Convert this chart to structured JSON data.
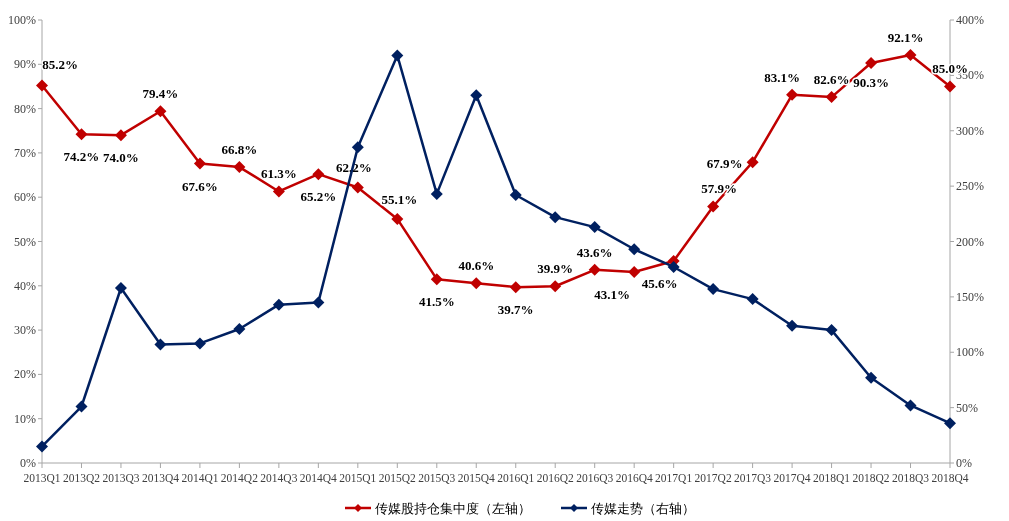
{
  "chart_data": {
    "type": "line",
    "categories": [
      "2013Q1",
      "2013Q2",
      "2013Q3",
      "2013Q4",
      "2014Q1",
      "2014Q2",
      "2014Q3",
      "2014Q4",
      "2015Q1",
      "2015Q2",
      "2015Q3",
      "2015Q4",
      "2016Q1",
      "2016Q2",
      "2016Q3",
      "2016Q4",
      "2017Q1",
      "2017Q2",
      "2017Q3",
      "2017Q4",
      "2018Q1",
      "2018Q2",
      "2018Q3",
      "2018Q4"
    ],
    "series": [
      {
        "name": "传媒股持仓集中度（左轴）",
        "color": "#c00000",
        "values": [
          85.2,
          74.2,
          74.0,
          79.4,
          67.6,
          66.8,
          61.3,
          65.2,
          62.2,
          55.1,
          41.5,
          40.6,
          39.7,
          39.9,
          43.6,
          43.1,
          45.6,
          57.9,
          67.9,
          83.1,
          82.6,
          90.3,
          92.1,
          85.0
        ],
        "value_labels": [
          "85.2%",
          "74.2%",
          "74.0%",
          "79.4%",
          "67.6%",
          "66.8%",
          "61.3%",
          "65.2%",
          "62.2%",
          "55.1%",
          "41.5%",
          "40.6%",
          "39.7%",
          "39.9%",
          "43.6%",
          "43.1%",
          "45.6%",
          "57.9%",
          "67.9%",
          "83.1%",
          "82.6%",
          "90.3%",
          "92.1%",
          "85.0%"
        ]
      },
      {
        "name": "传媒走势（右轴）",
        "color": "#002060",
        "axis": "y2",
        "values": [
          15,
          51,
          158,
          107,
          108,
          121,
          143,
          145,
          285,
          368,
          243,
          332,
          242,
          222,
          213,
          193,
          177,
          157,
          148,
          124,
          120,
          77,
          52,
          36
        ]
      }
    ],
    "ylim": [
      0,
      100
    ],
    "yticks": [
      {
        "value": 0,
        "label": "0%"
      },
      {
        "value": 10,
        "label": "10%"
      },
      {
        "value": 20,
        "label": "20%"
      },
      {
        "value": 30,
        "label": "30%"
      },
      {
        "value": 40,
        "label": "40%"
      },
      {
        "value": 50,
        "label": "50%"
      },
      {
        "value": 60,
        "label": "60%"
      },
      {
        "value": 70,
        "label": "70%"
      },
      {
        "value": 80,
        "label": "80%"
      },
      {
        "value": 90,
        "label": "90%"
      },
      {
        "value": 100,
        "label": "100%"
      }
    ],
    "y2lim": [
      0,
      400
    ],
    "y2ticks": [
      {
        "value": 0,
        "label": "0%"
      },
      {
        "value": 50,
        "label": "50%"
      },
      {
        "value": 100,
        "label": "100%"
      },
      {
        "value": 150,
        "label": "150%"
      },
      {
        "value": 200,
        "label": "200%"
      },
      {
        "value": 250,
        "label": "250%"
      },
      {
        "value": 300,
        "label": "300%"
      },
      {
        "value": 350,
        "label": "350%"
      },
      {
        "value": 400,
        "label": "400%"
      }
    ],
    "marker": "diamond",
    "legend": "bottom"
  }
}
